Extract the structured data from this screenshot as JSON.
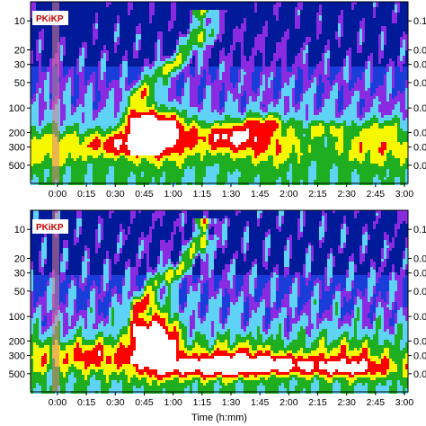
{
  "palette": {
    "dark_blue": "#001a99",
    "mid_blue": "#1a3dd9",
    "purple": "#8a2be2",
    "light_blue": "#5fd3f5",
    "cyan": "#27c9ea",
    "green": "#1fae1f",
    "yellow": "#f7f700",
    "red": "#ff0000",
    "white": "#ffffff",
    "marker": "#e08090"
  },
  "chart_data": [
    {
      "type": "heatmap",
      "panel": "top",
      "annotation": "PKiKP",
      "xlabel": "",
      "x_tick_labels": [
        "0:00",
        "0:15",
        "0:30",
        "0:45",
        "1:00",
        "1:15",
        "1:30",
        "1:45",
        "2:00",
        "2:15",
        "2:30",
        "2:45",
        "3:00"
      ],
      "y_left_tick_labels": [
        "10",
        "20",
        "30",
        "50",
        "100",
        "200",
        "300",
        "500"
      ],
      "y_right_tick_labels": [
        "0.1",
        "0.0",
        "0.0",
        "0.0",
        "0.0",
        "0.0",
        "0.0",
        "0.0"
      ],
      "y_scale": "log (period, increasing downward)",
      "color_levels": [
        "dark_blue",
        "purple",
        "light_blue",
        "green",
        "yellow",
        "red",
        "white"
      ],
      "marker_time": "0:00"
    },
    {
      "type": "heatmap",
      "panel": "bottom",
      "annotation": "PKiKP",
      "xlabel": "Time (h:mm)",
      "x_tick_labels": [
        "0:00",
        "0:15",
        "0:30",
        "0:45",
        "1:00",
        "1:15",
        "1:30",
        "1:45",
        "2:00",
        "2:15",
        "2:30",
        "2:45",
        "3:00"
      ],
      "y_left_tick_labels": [
        "10",
        "20",
        "30",
        "50",
        "100",
        "200",
        "300",
        "500"
      ],
      "y_right_tick_labels": [
        "0.1",
        "0.0",
        "0.0",
        "0.0",
        "0.0",
        "0.0",
        "0.0",
        "0.0"
      ],
      "y_scale": "log (period, increasing downward)",
      "color_levels": [
        "dark_blue",
        "purple",
        "light_blue",
        "green",
        "yellow",
        "red",
        "white"
      ],
      "marker_time": "0:00"
    }
  ]
}
